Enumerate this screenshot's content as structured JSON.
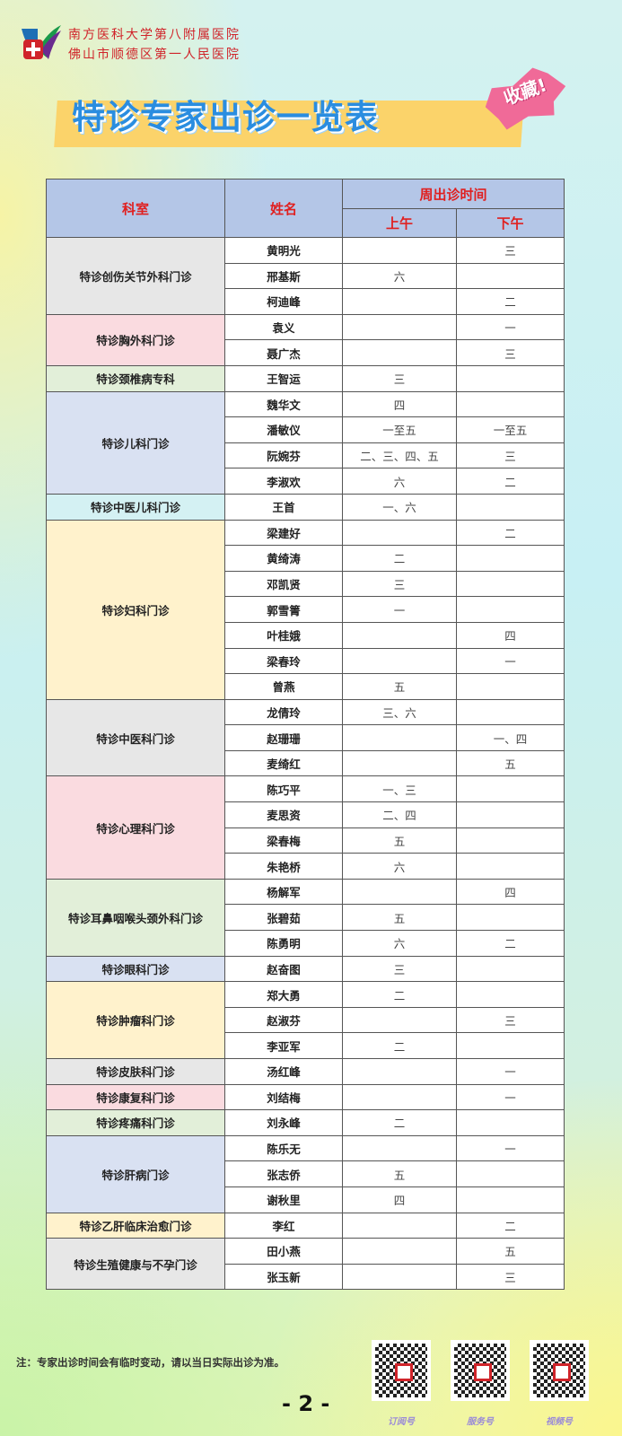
{
  "header": {
    "hospital_line1": "南方医科大学第八附属医院",
    "hospital_line2": "佛山市顺德区第一人民医院",
    "title": "特诊专家出诊一览表",
    "badge": "收藏!"
  },
  "table": {
    "headers": {
      "dept": "科室",
      "name": "姓名",
      "time": "周出诊时间",
      "am": "上午",
      "pm": "下午"
    },
    "groups": [
      {
        "dept": "特诊创伤关节外科门诊",
        "color": "#e7e7e7",
        "doctors": [
          [
            "黄明光",
            "",
            "三"
          ],
          [
            "邢基斯",
            "六",
            ""
          ],
          [
            "柯迪峰",
            "",
            "二"
          ]
        ]
      },
      {
        "dept": "特诊胸外科门诊",
        "color": "#fadbe0",
        "doctors": [
          [
            "袁义",
            "",
            "一"
          ],
          [
            "聂广杰",
            "",
            "三"
          ]
        ]
      },
      {
        "dept": "特诊颈椎病专科",
        "color": "#e2efd9",
        "doctors": [
          [
            "王智运",
            "三",
            ""
          ]
        ]
      },
      {
        "dept": "特诊儿科门诊",
        "color": "#d9e1f2",
        "doctors": [
          [
            "魏华文",
            "四",
            ""
          ],
          [
            "潘敏仪",
            "一至五",
            "一至五"
          ],
          [
            "阮婉芬",
            "二、三、四、五",
            "三"
          ],
          [
            "李淑欢",
            "六",
            "二"
          ]
        ]
      },
      {
        "dept": "特诊中医儿科门诊",
        "color": "#d4f1f3",
        "doctors": [
          [
            "王首",
            "一、六",
            ""
          ]
        ]
      },
      {
        "dept": "特诊妇科门诊",
        "color": "#fff2cc",
        "doctors": [
          [
            "梁建好",
            "",
            "二"
          ],
          [
            "黄绮涛",
            "二",
            ""
          ],
          [
            "邓凯贤",
            "三",
            ""
          ],
          [
            "郭雪箐",
            "一",
            ""
          ],
          [
            "叶桂娥",
            "",
            "四"
          ],
          [
            "梁春玲",
            "",
            "一"
          ],
          [
            "曾燕",
            "五",
            ""
          ]
        ]
      },
      {
        "dept": "特诊中医科门诊",
        "color": "#e7e7e7",
        "doctors": [
          [
            "龙倩玲",
            "三、六",
            ""
          ],
          [
            "赵珊珊",
            "",
            "一、四"
          ],
          [
            "麦绮红",
            "",
            "五"
          ]
        ]
      },
      {
        "dept": "特诊心理科门诊",
        "color": "#fadbe0",
        "doctors": [
          [
            "陈巧平",
            "一、三",
            ""
          ],
          [
            "麦思资",
            "二、四",
            ""
          ],
          [
            "梁春梅",
            "五",
            ""
          ],
          [
            "朱艳桥",
            "六",
            ""
          ]
        ]
      },
      {
        "dept": "特诊耳鼻咽喉头颈外科门诊",
        "color": "#e2efd9",
        "doctors": [
          [
            "杨解军",
            "",
            "四"
          ],
          [
            "张碧茹",
            "五",
            ""
          ],
          [
            "陈勇明",
            "六",
            "二"
          ]
        ]
      },
      {
        "dept": "特诊眼科门诊",
        "color": "#d9e1f2",
        "doctors": [
          [
            "赵奋图",
            "三",
            ""
          ]
        ]
      },
      {
        "dept": "特诊肿瘤科门诊",
        "color": "#fff2cc",
        "doctors": [
          [
            "郑大勇",
            "二",
            ""
          ],
          [
            "赵淑芬",
            "",
            "三"
          ],
          [
            "李亚军",
            "二",
            ""
          ]
        ]
      },
      {
        "dept": "特诊皮肤科门诊",
        "color": "#e7e7e7",
        "doctors": [
          [
            "汤红峰",
            "",
            "一"
          ]
        ]
      },
      {
        "dept": "特诊康复科门诊",
        "color": "#fadbe0",
        "doctors": [
          [
            "刘结梅",
            "",
            "一"
          ]
        ]
      },
      {
        "dept": "特诊疼痛科门诊",
        "color": "#e2efd9",
        "doctors": [
          [
            "刘永峰",
            "二",
            ""
          ]
        ]
      },
      {
        "dept": "特诊肝病门诊",
        "color": "#d9e1f2",
        "doctors": [
          [
            "陈乐无",
            "",
            "一"
          ],
          [
            "张志侨",
            "五",
            ""
          ],
          [
            "谢秋里",
            "四",
            ""
          ]
        ]
      },
      {
        "dept": "特诊乙肝临床治愈门诊",
        "color": "#fff2cc",
        "doctors": [
          [
            "李红",
            "",
            "二"
          ]
        ]
      },
      {
        "dept": "特诊生殖健康与不孕门诊",
        "color": "#e7e7e7",
        "doctors": [
          [
            "田小燕",
            "",
            "五"
          ],
          [
            "张玉新",
            "",
            "三"
          ]
        ]
      }
    ]
  },
  "footer": {
    "note": "注：专家出诊时间会有临时变动，请以当日实际出诊为准。",
    "page": "- 2 -",
    "qr_labels": [
      "订阅号",
      "服务号",
      "视频号"
    ]
  }
}
